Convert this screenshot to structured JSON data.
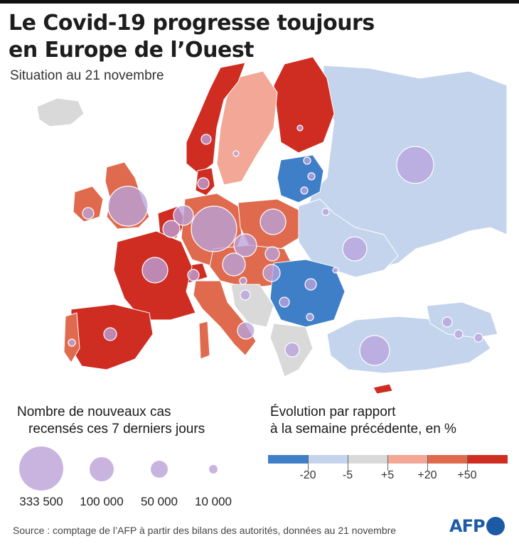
{
  "header": {
    "title_line1": "Le Covid-19 progresse toujours",
    "title_line2": "en Europe de l’Ouest",
    "subtitle": "Situation au 21 novembre"
  },
  "legend_size": {
    "title_line1": "Nombre de nouveaux cas",
    "title_line2": "recensés ces 7 derniers jours",
    "items": [
      {
        "label": "333 500",
        "value": 333500
      },
      {
        "label": "100 000",
        "value": 100000
      },
      {
        "label": "50 000",
        "value": 50000
      },
      {
        "label": "10 000",
        "value": 10000
      }
    ]
  },
  "legend_change": {
    "title_line1": "Évolution par rapport",
    "title_line2": "à la semaine précédente, en %",
    "ticks": [
      "-20",
      "-5",
      "+5",
      "+20",
      "+50"
    ],
    "classes": [
      {
        "range": "< -20",
        "color": "#3f7fc8"
      },
      {
        "range": "-20 à -5",
        "color": "#b3c9e6"
      },
      {
        "range": "-5 à +5",
        "color": "#d9d9d9"
      },
      {
        "range": "+5 à +20",
        "color": "#f2a797"
      },
      {
        "range": "+20 à +50",
        "color": "#e06a4e"
      },
      {
        "range": "> +50",
        "color": "#cf2c22"
      }
    ]
  },
  "colors": {
    "strong_decrease": "#3f7fc8",
    "decrease": "#b3c9e6",
    "stable": "#d9d9d9",
    "increase": "#f2a797",
    "strong_increase": "#e06a4e",
    "very_strong_increase": "#cf2c22",
    "bubble": "#b9a3dc",
    "brand": "#1d5aa6"
  },
  "source": "Source : comptage de l’AFP à partir des bilans des autorités, données au 21 novembre",
  "brand": "AFP"
}
